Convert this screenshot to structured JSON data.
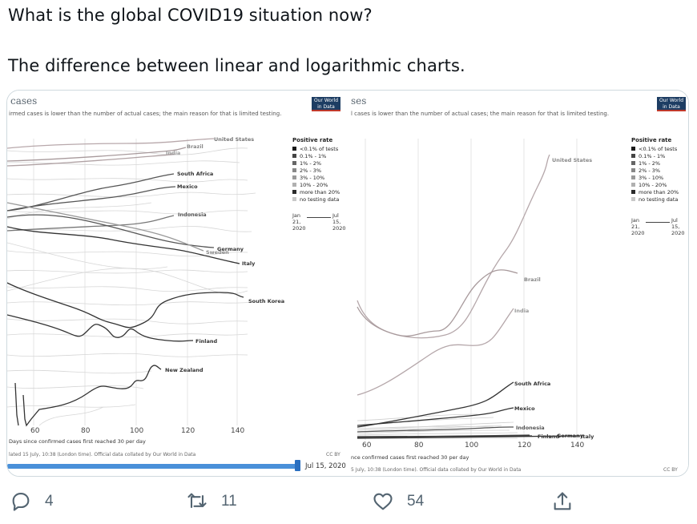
{
  "tweet": {
    "line1": "What is the global COVID19 situation now?",
    "line2": "The difference between linear and logarithmic charts."
  },
  "left_chart": {
    "title_fragment": "cases",
    "subtitle_fragment": "irmed cases is lower than the number of actual cases; the main reason for that is limited testing.",
    "logo": "Our World in Data",
    "countries": [
      "United States",
      "Brazil",
      "India",
      "South Africa",
      "Mexico",
      "Indonesia",
      "Germany",
      "Sweden",
      "Italy",
      "South Korea",
      "Finland",
      "New Zealand"
    ],
    "x_ticks": [
      "60",
      "80",
      "100",
      "120",
      "140"
    ],
    "x_label": "Days since confirmed cases first reached 30 per day",
    "source": "lated 15 July, 10:38 (London time). Official data collated by Our World in Data",
    "license": "CC BY",
    "timeline_label": "Jul 15, 2020"
  },
  "right_chart": {
    "title_fragment": "ses",
    "subtitle_fragment": "l cases is lower than the number of actual cases; the main reason for that is limited testing.",
    "logo": "Our World in Data",
    "countries": [
      "United States",
      "Brazil",
      "India",
      "South Africa",
      "Mexico",
      "Indonesia",
      "Finland",
      "Germany",
      "Italy"
    ],
    "x_ticks": [
      "60",
      "80",
      "100",
      "120",
      "140"
    ],
    "x_label": "nce confirmed cases first reached 30 per day",
    "source": "5 July, 10:38 (London time). Official data collated by Our World in Data",
    "license": "CC BY"
  },
  "legend": {
    "title": "Positive rate",
    "items": [
      "<0.1% of tests",
      "0.1% - 1%",
      "1% - 2%",
      "2% - 3%",
      "3% - 10%",
      "10% - 20%",
      "more than 20%",
      "no testing data"
    ],
    "swatch_colors": [
      "#1a1a1a",
      "#444444",
      "#666666",
      "#888888",
      "#9a9a9a",
      "#b0b0b0",
      "#2b2b2b",
      "#c8c8c8"
    ],
    "range_start": "Jan 21, 2020",
    "range_end": "Jul 15, 2020"
  },
  "actions": {
    "reply_count": "4",
    "retweet_count": "11",
    "like_count": "54"
  },
  "colors": {
    "accent": "#4a90d9",
    "icon_gray": "#536471"
  },
  "icons": [
    "reply-icon",
    "retweet-icon",
    "like-icon",
    "share-icon"
  ]
}
